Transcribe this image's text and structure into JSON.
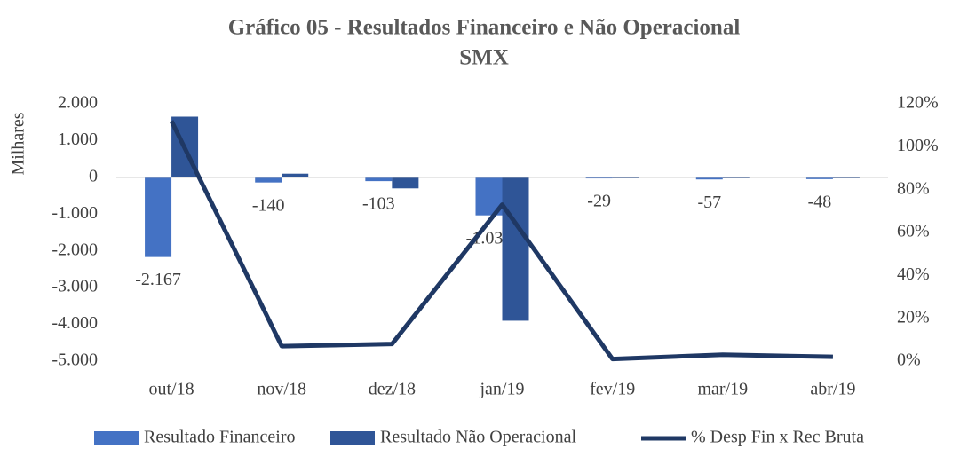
{
  "chart_data": {
    "type": "bar-line",
    "title": [
      "Gráfico 05 - Resultados Financeiro e Não Operacional",
      "SMX"
    ],
    "ylabel": "Milhares",
    "categories": [
      "out/18",
      "nov/18",
      "dez/18",
      "jan/19",
      "fev/19",
      "mar/19",
      "abr/19"
    ],
    "series": [
      {
        "name": "Resultado Financeiro",
        "color": "#4472c4",
        "type": "bar",
        "values": [
          -2167,
          -140,
          -103,
          -1034,
          -29,
          -57,
          -48
        ],
        "value_labels": [
          "-2.167",
          "-140",
          "-103",
          "-1.034",
          "-29",
          "-57",
          "-48"
        ]
      },
      {
        "name": "Resultado Não Operacional",
        "color": "#2f5597",
        "type": "bar",
        "values": [
          1650,
          100,
          -300,
          -3900,
          -10,
          -20,
          -10
        ]
      },
      {
        "name": "% Desp Fin x Rec Bruta",
        "color": "#1f3864",
        "type": "line",
        "axis": "y2",
        "values": [
          112,
          7,
          8,
          73,
          1,
          3,
          2
        ]
      }
    ],
    "ylim": [
      -5000,
      2000
    ],
    "yticks": [
      {
        "value": -5000,
        "label": "-5.000"
      },
      {
        "value": -4000,
        "label": "-4.000"
      },
      {
        "value": -3000,
        "label": "-3.000"
      },
      {
        "value": -2000,
        "label": "-2.000"
      },
      {
        "value": -1000,
        "label": "-1.000"
      },
      0,
      {
        "value": 1000,
        "label": "1.000"
      },
      {
        "value": 2000,
        "label": "2.000"
      }
    ],
    "y2lim": [
      0,
      120
    ],
    "y2ticks": [
      {
        "value": 0,
        "label": "0%"
      },
      {
        "value": 20,
        "label": "20%"
      },
      {
        "value": 40,
        "label": "40%"
      },
      {
        "value": 60,
        "label": "60%"
      },
      {
        "value": 80,
        "label": "80%"
      },
      {
        "value": 100,
        "label": "100%"
      },
      {
        "value": 120,
        "label": "120%"
      }
    ],
    "grid": false,
    "legend": "bottom"
  }
}
